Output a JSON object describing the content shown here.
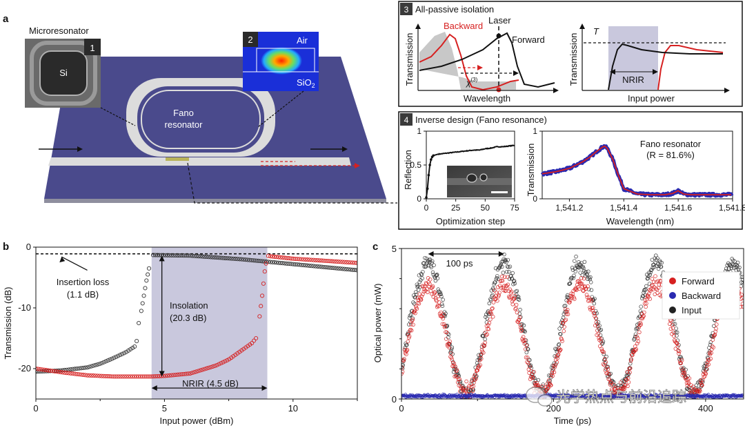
{
  "panel_labels": {
    "a": "a",
    "b": "b",
    "c": "c"
  },
  "panel_a": {
    "inset1_title": "Microresonator",
    "inset1_num": "1",
    "inset1_label": "Si",
    "inset2_num": "2",
    "inset2_air": "Air",
    "inset2_sio2": "SiO",
    "inset2_sio2_sub": "2",
    "device_label_1": "Fano",
    "device_label_2": "resonator"
  },
  "panel3": {
    "num": "3",
    "title": "All-passive isolation",
    "left": {
      "ylabel": "Transmission",
      "xlabel": "Wavelength",
      "backward": "Backward",
      "laser": "Laser",
      "forward": "Forward",
      "chi": "χ",
      "chi_sup": "(3)"
    },
    "right": {
      "ylabel": "Transmission",
      "xlabel": "Input power",
      "t_label": "T",
      "nrir": "NRIR"
    }
  },
  "panel4": {
    "num": "4",
    "title": "Inverse design (Fano resonance)",
    "left": {
      "ylabel": "Reflection",
      "xlabel": "Optimization step"
    },
    "right": {
      "ylabel": "Transmission",
      "xlabel": "Wavelength (nm)",
      "note_1": "Fano resonator",
      "note_2": "(R = 81.6%)"
    }
  },
  "annotations_b": {
    "insertion_1": "Insertion loss",
    "insertion_2": "(1.1 dB)",
    "isolation_1": "Insolation",
    "isolation_2": "(20.3 dB)",
    "nrir": "NRIR (4.5 dB)"
  },
  "annotations_c": {
    "period": "100 ps"
  },
  "watermark": "光学热点与前沿追踪",
  "colors": {
    "forward": "#d62020",
    "backward": "#2a2ab0",
    "input": "#222222",
    "nrir_band": "#c9c8dd",
    "purple": "#4a4a8c"
  },
  "chart_data": [
    {
      "id": "4-left",
      "type": "line",
      "xlabel": "Optimization step",
      "ylabel": "Reflection",
      "xlim": [
        0,
        75
      ],
      "ylim": [
        0,
        1
      ],
      "xticks": [
        "0",
        "25",
        "50",
        "75"
      ],
      "yticks": [
        "0",
        "0.5",
        "1"
      ],
      "x": [
        0,
        1,
        2,
        3,
        4,
        5,
        6,
        8,
        10,
        15,
        20,
        25,
        30,
        35,
        40,
        45,
        50,
        55,
        60,
        65,
        70,
        75
      ],
      "y": [
        0.02,
        0.15,
        0.35,
        0.5,
        0.58,
        0.62,
        0.64,
        0.65,
        0.66,
        0.67,
        0.68,
        0.69,
        0.7,
        0.71,
        0.72,
        0.72,
        0.74,
        0.75,
        0.77,
        0.77,
        0.78,
        0.79
      ]
    },
    {
      "id": "4-right",
      "type": "line",
      "xlabel": "Wavelength (nm)",
      "ylabel": "Transmission",
      "xlim": [
        1541.1,
        1541.8
      ],
      "ylim": [
        0,
        1
      ],
      "xticks": [
        "1,541.2",
        "1,541.4",
        "1,541.6",
        "1,541.8"
      ],
      "yticks": [
        "0",
        "1"
      ],
      "x": [
        1541.1,
        1541.15,
        1541.2,
        1541.25,
        1541.28,
        1541.3,
        1541.32,
        1541.33,
        1541.34,
        1541.36,
        1541.38,
        1541.4,
        1541.45,
        1541.5,
        1541.55,
        1541.58,
        1541.6,
        1541.62,
        1541.65,
        1541.7,
        1541.8
      ],
      "series": [
        {
          "values": [
            0.37,
            0.4,
            0.45,
            0.55,
            0.63,
            0.7,
            0.76,
            0.78,
            0.74,
            0.58,
            0.35,
            0.15,
            0.07,
            0.06,
            0.06,
            0.08,
            0.12,
            0.07,
            0.06,
            0.06,
            0.06
          ]
        }
      ]
    },
    {
      "id": "b",
      "type": "scatter",
      "xlabel": "Input power (dBm)",
      "ylabel": "Transmission (dB)",
      "xlim": [
        0,
        12.5
      ],
      "ylim": [
        -25,
        0
      ],
      "xticks": [
        "0",
        "5",
        "10"
      ],
      "yticks": [
        "0",
        "-10",
        "-20"
      ],
      "nrir_band": [
        4.5,
        9.0
      ],
      "insertion_loss_db": -1.1,
      "series": [
        {
          "color": "black",
          "x": [
            0,
            1,
            2,
            2.5,
            3,
            3.5,
            3.9,
            4.0,
            4.1,
            4.2,
            4.3,
            4.4,
            4.5,
            6,
            8,
            10,
            12.5
          ],
          "y": [
            -20.5,
            -20.3,
            -19.8,
            -19.2,
            -18.3,
            -17.3,
            -16.2,
            -12.5,
            -10.5,
            -8,
            -5.5,
            -3.5,
            -1.3,
            -1.4,
            -2,
            -2.8,
            -3.8
          ]
        },
        {
          "color": "red",
          "x": [
            0,
            1,
            2,
            3,
            4,
            4.5,
            5,
            6,
            7,
            7.5,
            8,
            8.4,
            8.6,
            8.8,
            8.9,
            9.0,
            9.1,
            10,
            12.5
          ],
          "y": [
            -20,
            -20.6,
            -21.1,
            -21.3,
            -21.3,
            -21.3,
            -21.2,
            -20.8,
            -19.5,
            -18.5,
            -17,
            -15.8,
            -14.8,
            -8,
            -4,
            -1.4,
            -1.5,
            -1.9,
            -2.6
          ]
        }
      ]
    },
    {
      "id": "c",
      "type": "scatter",
      "xlabel": "Time (ps)",
      "ylabel": "Optical power (mW)",
      "xlim": [
        0,
        450
      ],
      "ylim": [
        0,
        5
      ],
      "xticks": [
        "0",
        "200",
        "400"
      ],
      "yticks": [
        "0",
        "5"
      ],
      "period_ps": 100,
      "series": [
        {
          "name": "Forward",
          "color": "#d62020",
          "peak_mw": 3.8,
          "min_mw": 0.2,
          "period_ps": 100,
          "first_peak_ps": 35
        },
        {
          "name": "Backward",
          "color": "#2a2ab0",
          "level_mw": 0.1
        },
        {
          "name": "Input",
          "color": "#222222",
          "peak_mw": 4.5,
          "min_mw": 0.2,
          "period_ps": 100,
          "first_peak_ps": 35
        }
      ]
    }
  ]
}
